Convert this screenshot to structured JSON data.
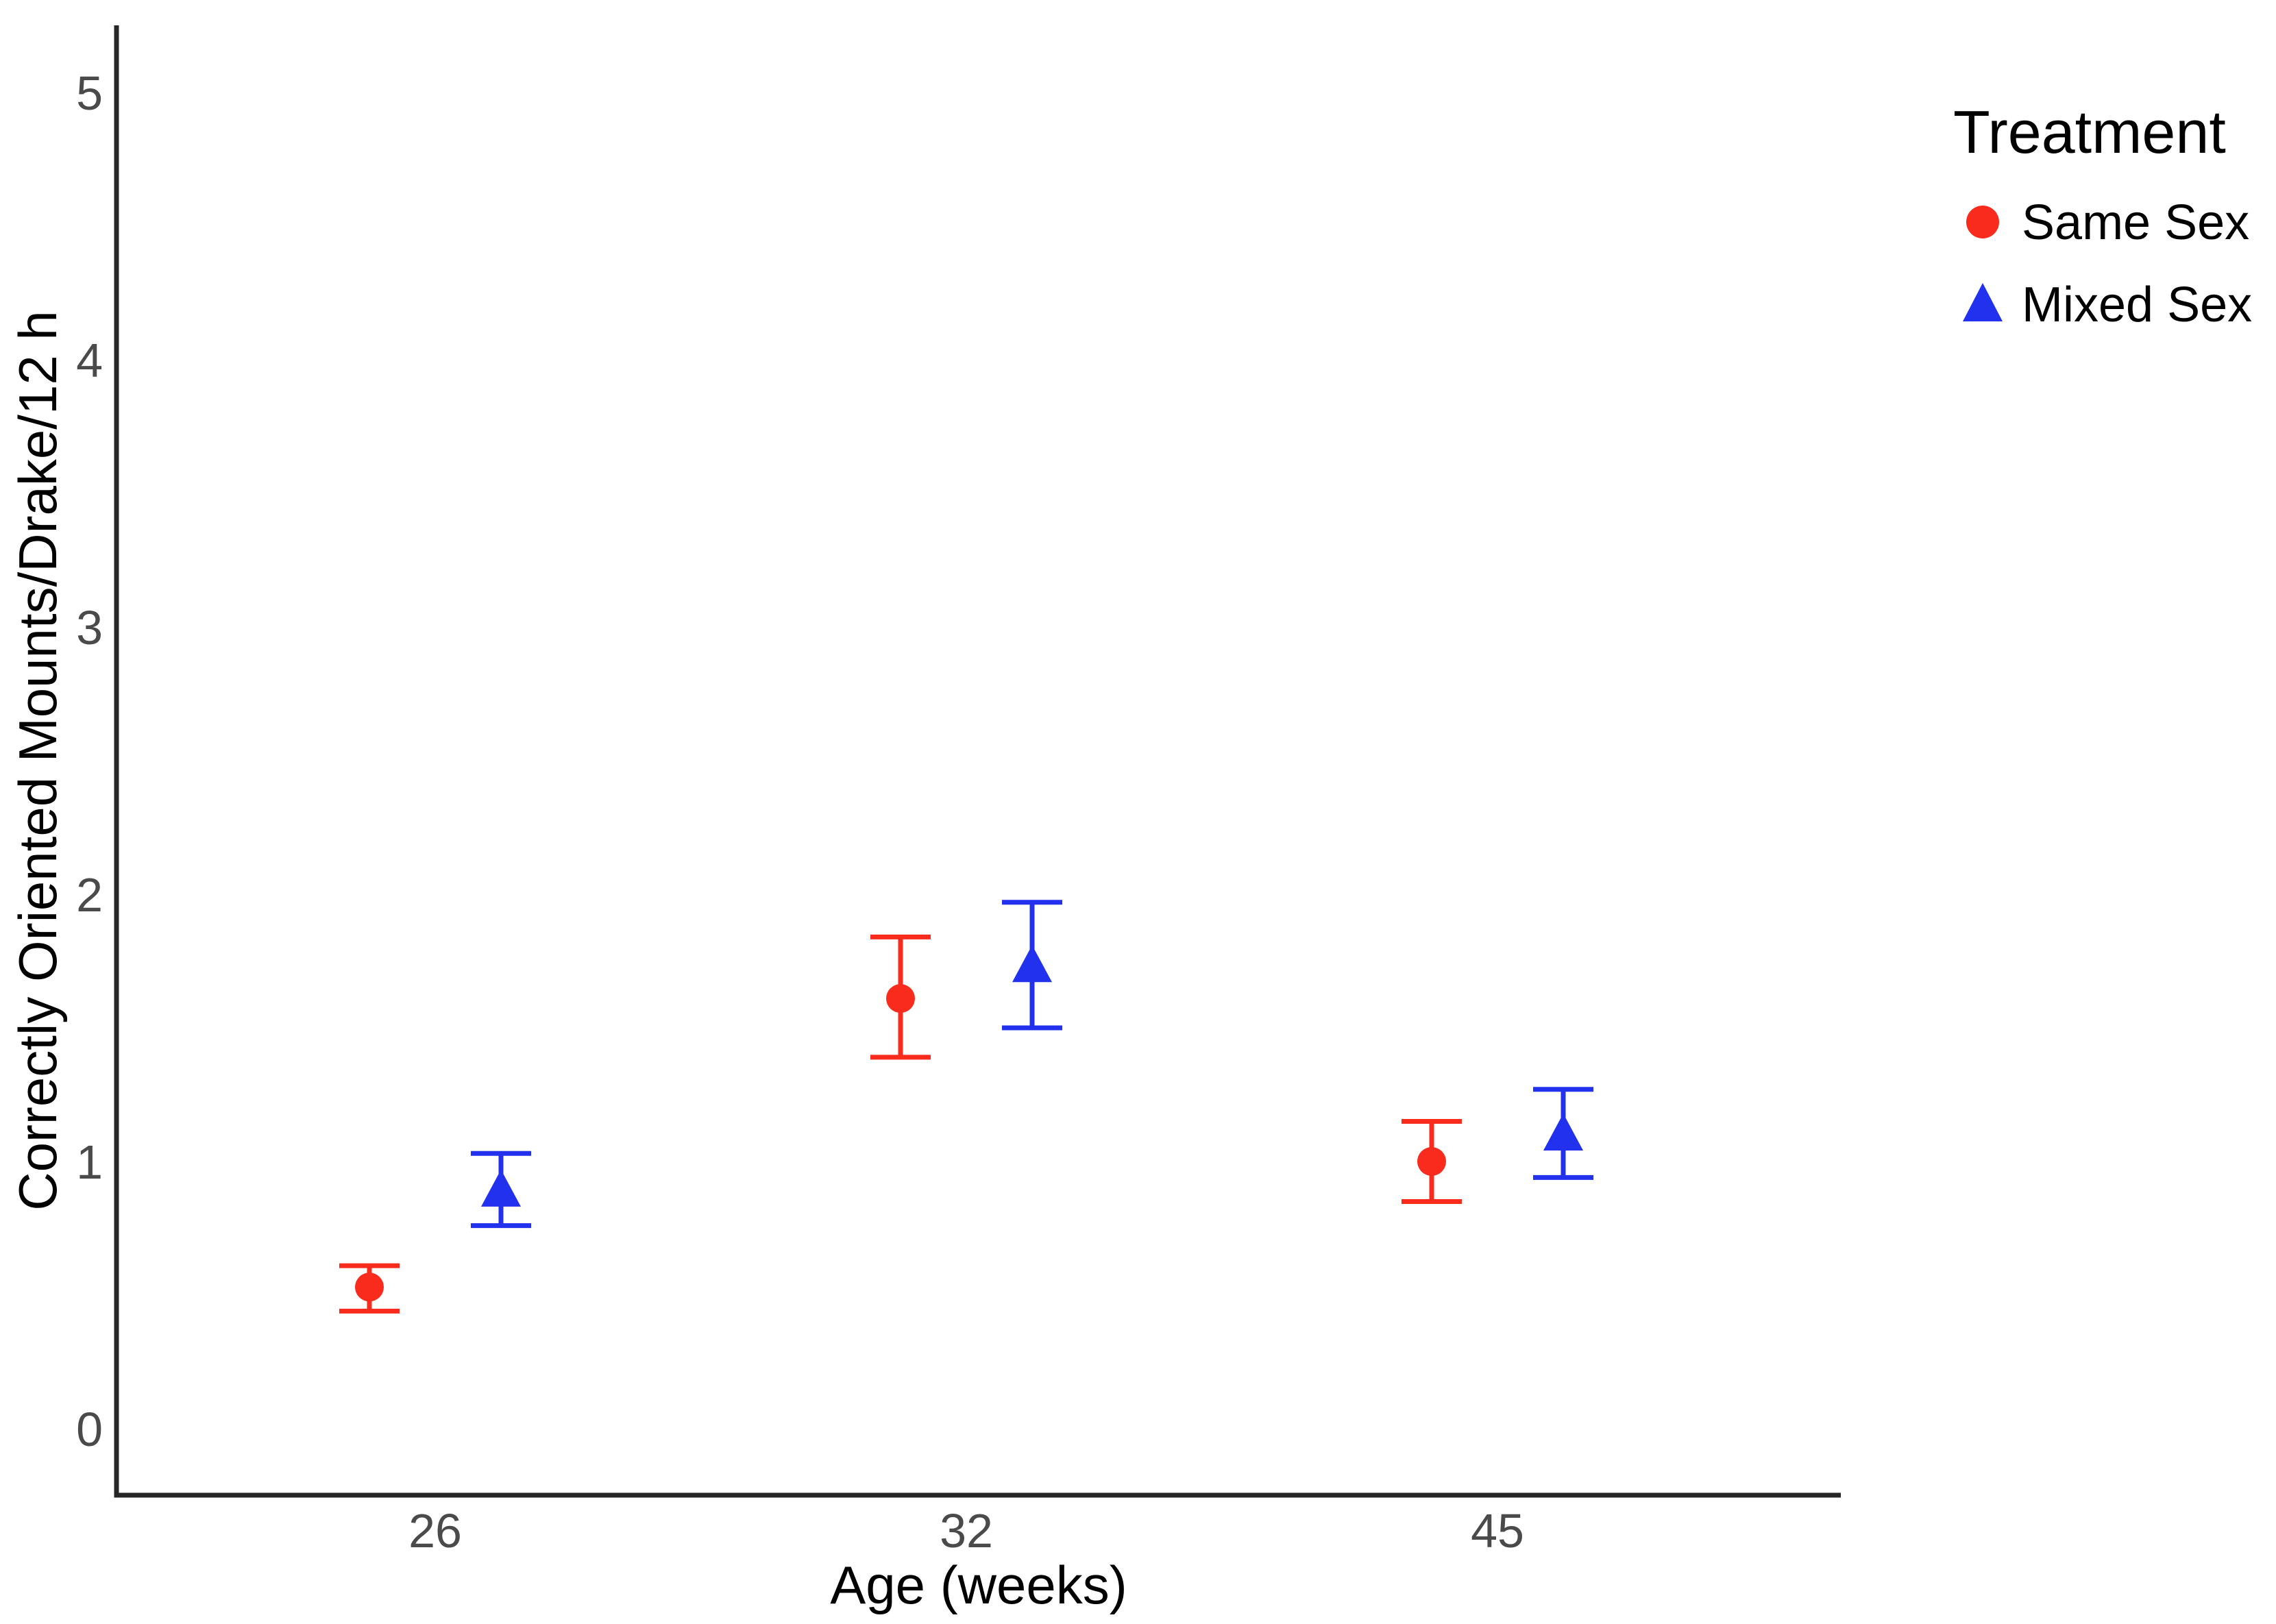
{
  "page": {
    "background": "#ffffff"
  },
  "chart_data": {
    "type": "scatter",
    "title": "",
    "xlabel": "Age (weeks)",
    "ylabel": "Correctly Oriented Mounts/Drake/12 h",
    "x_categories": [
      "26",
      "32",
      "45"
    ],
    "y_ticks": [
      "0",
      "1",
      "2",
      "3",
      "4",
      "5"
    ],
    "ylim": [
      0,
      5.25
    ],
    "grid": "off",
    "error_bars": "mean with capped error bars",
    "legend": {
      "title": "Treatment",
      "position": "right",
      "entries": [
        {
          "label": "Same Sex",
          "marker": "circle",
          "color": "#F92B1C"
        },
        {
          "label": "Mixed Sex",
          "marker": "triangle",
          "color": "#2231EE"
        }
      ]
    },
    "series": [
      {
        "name": "Same Sex",
        "marker": "circle",
        "color": "#F92B1C",
        "points": [
          {
            "x": "26",
            "mean": 0.53,
            "lower": 0.44,
            "upper": 0.61
          },
          {
            "x": "32",
            "mean": 1.61,
            "lower": 1.39,
            "upper": 1.84
          },
          {
            "x": "45",
            "mean": 1.0,
            "lower": 0.85,
            "upper": 1.15
          }
        ]
      },
      {
        "name": "Mixed Sex",
        "marker": "triangle",
        "color": "#2231EE",
        "points": [
          {
            "x": "26",
            "mean": 0.89,
            "lower": 0.76,
            "upper": 1.03
          },
          {
            "x": "32",
            "mean": 1.73,
            "lower": 1.5,
            "upper": 1.97
          },
          {
            "x": "45",
            "mean": 1.1,
            "lower": 0.94,
            "upper": 1.27
          }
        ]
      }
    ],
    "colors": {
      "same_sex": "#F92B1C",
      "mixed_sex": "#2231EE",
      "axis": "#262626",
      "tick_text": "#4a4a4a",
      "title_text": "#000000"
    }
  }
}
